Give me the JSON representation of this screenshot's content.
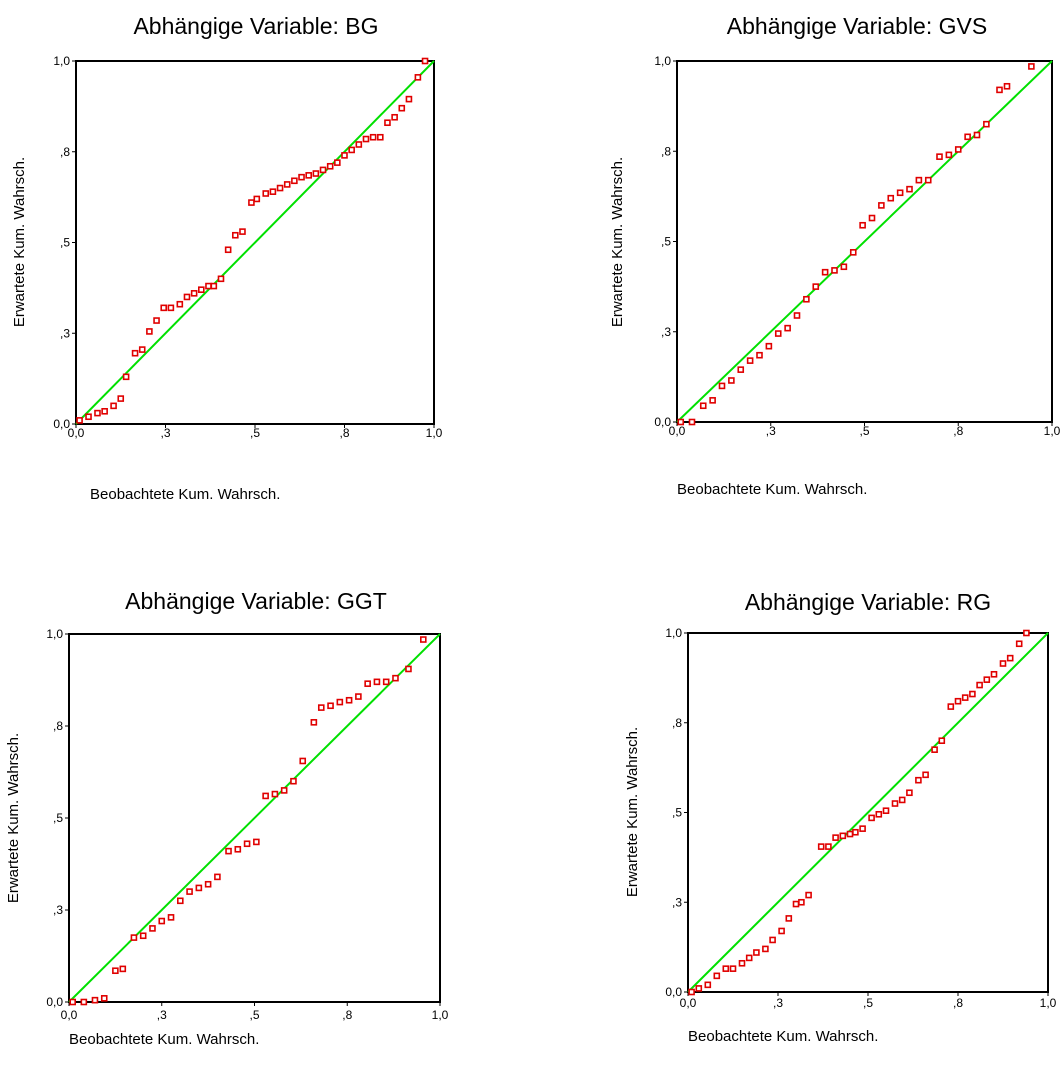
{
  "chart_data": [
    {
      "type": "scatter",
      "title": "Abhängige Variable: BG",
      "xlabel": "Beobachtete Kum.  Wahrsch.",
      "ylabel": "Erwartete Kum.  Wahrsch.",
      "xlim": [
        0,
        1
      ],
      "ylim": [
        0,
        1
      ],
      "xticks": [
        "0,0",
        ",3",
        ",5",
        ",8",
        "1,0"
      ],
      "yticks": [
        "0,0",
        ",3",
        ",5",
        ",8",
        "1,0"
      ],
      "reference_line": {
        "from": [
          0,
          0
        ],
        "to": [
          1,
          1
        ],
        "color": "#00e000"
      },
      "point_color": "#e00000",
      "points": [
        [
          0.01,
          0.01
        ],
        [
          0.035,
          0.02
        ],
        [
          0.06,
          0.03
        ],
        [
          0.08,
          0.035
        ],
        [
          0.105,
          0.05
        ],
        [
          0.125,
          0.07
        ],
        [
          0.14,
          0.13
        ],
        [
          0.165,
          0.195
        ],
        [
          0.185,
          0.205
        ],
        [
          0.205,
          0.255
        ],
        [
          0.225,
          0.285
        ],
        [
          0.245,
          0.32
        ],
        [
          0.265,
          0.32
        ],
        [
          0.29,
          0.33
        ],
        [
          0.31,
          0.35
        ],
        [
          0.33,
          0.36
        ],
        [
          0.35,
          0.37
        ],
        [
          0.37,
          0.38
        ],
        [
          0.385,
          0.38
        ],
        [
          0.405,
          0.4
        ],
        [
          0.425,
          0.48
        ],
        [
          0.445,
          0.52
        ],
        [
          0.465,
          0.53
        ],
        [
          0.49,
          0.61
        ],
        [
          0.505,
          0.62
        ],
        [
          0.53,
          0.635
        ],
        [
          0.55,
          0.64
        ],
        [
          0.57,
          0.65
        ],
        [
          0.59,
          0.66
        ],
        [
          0.61,
          0.67
        ],
        [
          0.63,
          0.68
        ],
        [
          0.65,
          0.685
        ],
        [
          0.67,
          0.69
        ],
        [
          0.69,
          0.7
        ],
        [
          0.71,
          0.71
        ],
        [
          0.73,
          0.72
        ],
        [
          0.75,
          0.74
        ],
        [
          0.77,
          0.755
        ],
        [
          0.79,
          0.77
        ],
        [
          0.81,
          0.785
        ],
        [
          0.83,
          0.79
        ],
        [
          0.85,
          0.79
        ],
        [
          0.87,
          0.83
        ],
        [
          0.89,
          0.845
        ],
        [
          0.91,
          0.87
        ],
        [
          0.93,
          0.895
        ],
        [
          0.955,
          0.955
        ],
        [
          0.975,
          1.0
        ]
      ]
    },
    {
      "type": "scatter",
      "title": "Abhängige Variable: GVS",
      "xlabel": "Beobachtete Kum.  Wahrsch.",
      "ylabel": "Erwartete Kum.  Wahrsch.",
      "xlim": [
        0,
        1
      ],
      "ylim": [
        0,
        1
      ],
      "xticks": [
        "0,0",
        ",3",
        ",5",
        ",8",
        "1,0"
      ],
      "yticks": [
        "0,0",
        ",3",
        ",5",
        ",8",
        "1,0"
      ],
      "reference_line": {
        "from": [
          0,
          0
        ],
        "to": [
          1,
          1
        ],
        "color": "#00e000"
      },
      "point_color": "#e00000",
      "points": [
        [
          0.01,
          0.0
        ],
        [
          0.04,
          0.0
        ],
        [
          0.07,
          0.045
        ],
        [
          0.095,
          0.06
        ],
        [
          0.12,
          0.1
        ],
        [
          0.145,
          0.115
        ],
        [
          0.17,
          0.145
        ],
        [
          0.195,
          0.17
        ],
        [
          0.22,
          0.185
        ],
        [
          0.245,
          0.21
        ],
        [
          0.27,
          0.245
        ],
        [
          0.295,
          0.26
        ],
        [
          0.32,
          0.295
        ],
        [
          0.345,
          0.34
        ],
        [
          0.37,
          0.375
        ],
        [
          0.395,
          0.415
        ],
        [
          0.42,
          0.42
        ],
        [
          0.445,
          0.43
        ],
        [
          0.47,
          0.47
        ],
        [
          0.495,
          0.545
        ],
        [
          0.52,
          0.565
        ],
        [
          0.545,
          0.6
        ],
        [
          0.57,
          0.62
        ],
        [
          0.595,
          0.635
        ],
        [
          0.62,
          0.645
        ],
        [
          0.645,
          0.67
        ],
        [
          0.67,
          0.67
        ],
        [
          0.7,
          0.735
        ],
        [
          0.725,
          0.74
        ],
        [
          0.75,
          0.755
        ],
        [
          0.775,
          0.79
        ],
        [
          0.8,
          0.795
        ],
        [
          0.825,
          0.825
        ],
        [
          0.86,
          0.92
        ],
        [
          0.88,
          0.93
        ],
        [
          0.945,
          0.985
        ]
      ]
    },
    {
      "type": "scatter",
      "title": "Abhängige Variable: GGT",
      "xlabel": "Beobachtete Kum.  Wahrsch.",
      "ylabel": "Erwartete Kum.  Wahrsch.",
      "xlim": [
        0,
        1
      ],
      "ylim": [
        0,
        1
      ],
      "xticks": [
        "0,0",
        ",3",
        ",5",
        ",8",
        "1,0"
      ],
      "yticks": [
        "0,0",
        ",3",
        ",5",
        ",8",
        "1,0"
      ],
      "reference_line": {
        "from": [
          0,
          0
        ],
        "to": [
          1,
          1
        ],
        "color": "#00e000"
      },
      "point_color": "#e00000",
      "points": [
        [
          0.01,
          0.0
        ],
        [
          0.04,
          0.0
        ],
        [
          0.07,
          0.005
        ],
        [
          0.095,
          0.01
        ],
        [
          0.125,
          0.085
        ],
        [
          0.145,
          0.09
        ],
        [
          0.175,
          0.175
        ],
        [
          0.2,
          0.18
        ],
        [
          0.225,
          0.2
        ],
        [
          0.25,
          0.22
        ],
        [
          0.275,
          0.23
        ],
        [
          0.3,
          0.275
        ],
        [
          0.325,
          0.3
        ],
        [
          0.35,
          0.31
        ],
        [
          0.375,
          0.32
        ],
        [
          0.4,
          0.34
        ],
        [
          0.43,
          0.41
        ],
        [
          0.455,
          0.415
        ],
        [
          0.48,
          0.43
        ],
        [
          0.505,
          0.435
        ],
        [
          0.53,
          0.56
        ],
        [
          0.555,
          0.565
        ],
        [
          0.58,
          0.575
        ],
        [
          0.605,
          0.6
        ],
        [
          0.63,
          0.655
        ],
        [
          0.66,
          0.76
        ],
        [
          0.68,
          0.8
        ],
        [
          0.705,
          0.805
        ],
        [
          0.73,
          0.815
        ],
        [
          0.755,
          0.82
        ],
        [
          0.78,
          0.83
        ],
        [
          0.805,
          0.865
        ],
        [
          0.83,
          0.87
        ],
        [
          0.855,
          0.87
        ],
        [
          0.88,
          0.88
        ],
        [
          0.915,
          0.905
        ],
        [
          0.955,
          0.985
        ]
      ]
    },
    {
      "type": "scatter",
      "title": "Abhängige Variable: RG",
      "xlabel": "Beobachtete Kum.  Wahrsch.",
      "ylabel": "Erwartete Kum.  Wahrsch.",
      "xlim": [
        0,
        1
      ],
      "ylim": [
        0,
        1
      ],
      "xticks": [
        "0,0",
        ",3",
        ",5",
        ",8",
        "1,0"
      ],
      "yticks": [
        "0,0",
        ",3",
        ",5",
        ",8",
        "1,0"
      ],
      "reference_line": {
        "from": [
          0,
          0
        ],
        "to": [
          1,
          1
        ],
        "color": "#00e000"
      },
      "point_color": "#e00000",
      "points": [
        [
          0.01,
          0.0
        ],
        [
          0.03,
          0.01
        ],
        [
          0.055,
          0.02
        ],
        [
          0.08,
          0.045
        ],
        [
          0.105,
          0.065
        ],
        [
          0.125,
          0.065
        ],
        [
          0.15,
          0.08
        ],
        [
          0.17,
          0.095
        ],
        [
          0.19,
          0.11
        ],
        [
          0.215,
          0.12
        ],
        [
          0.235,
          0.145
        ],
        [
          0.26,
          0.17
        ],
        [
          0.28,
          0.205
        ],
        [
          0.3,
          0.245
        ],
        [
          0.315,
          0.25
        ],
        [
          0.335,
          0.27
        ],
        [
          0.37,
          0.405
        ],
        [
          0.39,
          0.405
        ],
        [
          0.41,
          0.43
        ],
        [
          0.43,
          0.435
        ],
        [
          0.45,
          0.44
        ],
        [
          0.465,
          0.445
        ],
        [
          0.485,
          0.455
        ],
        [
          0.51,
          0.485
        ],
        [
          0.53,
          0.495
        ],
        [
          0.55,
          0.505
        ],
        [
          0.575,
          0.525
        ],
        [
          0.595,
          0.535
        ],
        [
          0.615,
          0.555
        ],
        [
          0.64,
          0.59
        ],
        [
          0.66,
          0.605
        ],
        [
          0.685,
          0.675
        ],
        [
          0.705,
          0.7
        ],
        [
          0.73,
          0.795
        ],
        [
          0.75,
          0.81
        ],
        [
          0.77,
          0.82
        ],
        [
          0.79,
          0.83
        ],
        [
          0.81,
          0.855
        ],
        [
          0.83,
          0.87
        ],
        [
          0.85,
          0.885
        ],
        [
          0.875,
          0.915
        ],
        [
          0.895,
          0.93
        ],
        [
          0.92,
          0.97
        ],
        [
          0.94,
          1.0
        ]
      ]
    }
  ]
}
